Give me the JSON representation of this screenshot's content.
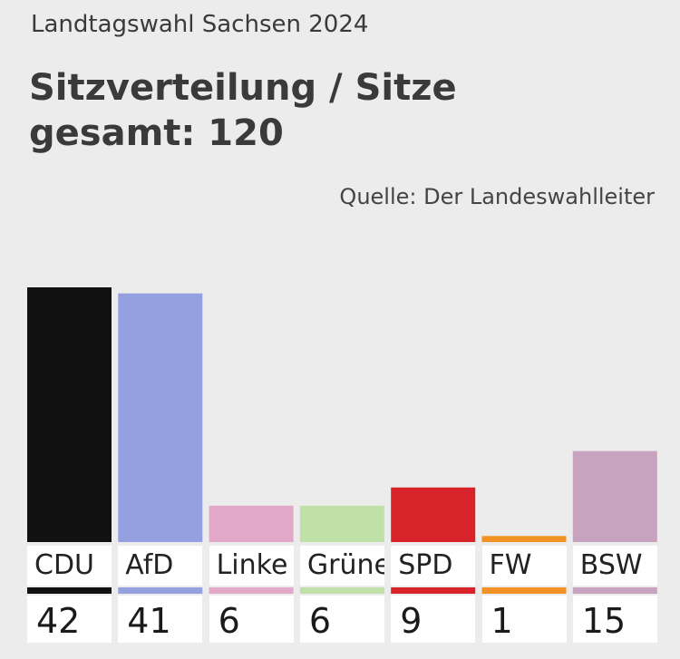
{
  "header": {
    "kicker": "Landtagswahl Sachsen 2024",
    "title": "Sitzverteilung / Sitze gesamt: 120",
    "source": "Quelle: Der Landeswahlleiter"
  },
  "chart_data": {
    "type": "bar",
    "title": "Sitzverteilung / Sitze gesamt: 120",
    "categories": [
      "CDU",
      "AfD",
      "Linke",
      "Grüne",
      "SPD",
      "FW",
      "BSW"
    ],
    "values": [
      42,
      41,
      6,
      6,
      9,
      1,
      15
    ],
    "colors": [
      "#111111",
      "#95a0e0",
      "#e2a8c8",
      "#bfe0a6",
      "#d9232a",
      "#f39225",
      "#c8a3c0"
    ],
    "ylim": [
      0,
      42
    ],
    "grid": false,
    "legend": "none"
  }
}
